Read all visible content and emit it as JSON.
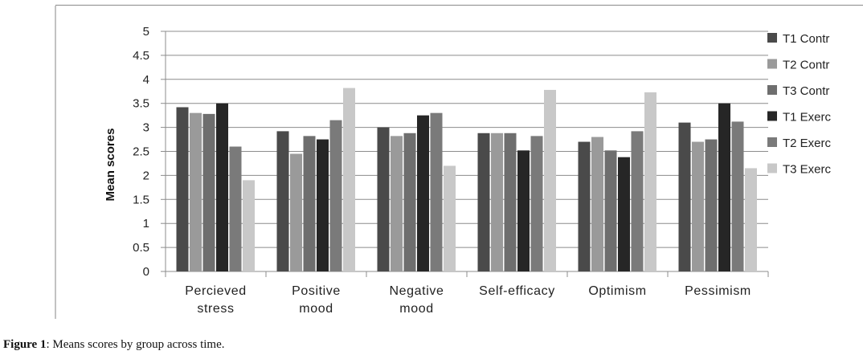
{
  "caption": {
    "label": "Figure 1",
    "text": ": Means scores by group across time."
  },
  "chart_data": {
    "type": "bar",
    "title": "",
    "xlabel": "",
    "ylabel": "Mean scores",
    "ylim": [
      0,
      5
    ],
    "yticks": [
      "0",
      "0.5",
      "1",
      "1.5",
      "2",
      "2.5",
      "3",
      "3.5",
      "4",
      "4.5",
      "5"
    ],
    "grid": true,
    "legend_position": "right",
    "categories": [
      [
        "Percieved",
        "stress"
      ],
      [
        "Positive",
        "mood"
      ],
      [
        "Negative",
        "mood"
      ],
      [
        "Self-efficacy"
      ],
      [
        "Optimism"
      ],
      [
        "Pessimism"
      ]
    ],
    "series": [
      {
        "name": "T1 Contr",
        "color": "#4a4a4a",
        "values": [
          3.42,
          2.92,
          3.0,
          2.88,
          2.7,
          3.1
        ]
      },
      {
        "name": "T2 Contr",
        "color": "#9a9a9a",
        "values": [
          3.3,
          2.45,
          2.82,
          2.88,
          2.8,
          2.7
        ]
      },
      {
        "name": "T3 Contr",
        "color": "#6e6e6e",
        "values": [
          3.28,
          2.82,
          2.88,
          2.88,
          2.52,
          2.75
        ]
      },
      {
        "name": "T1 Exerc",
        "color": "#262626",
        "values": [
          3.5,
          2.75,
          3.25,
          2.52,
          2.38,
          3.5
        ]
      },
      {
        "name": "T2 Exerc",
        "color": "#7a7a7a",
        "values": [
          2.6,
          3.15,
          3.3,
          2.82,
          2.92,
          3.12
        ]
      },
      {
        "name": "T3 Exerc",
        "color": "#c8c8c8",
        "values": [
          1.9,
          3.82,
          2.2,
          3.78,
          3.73,
          2.15
        ]
      }
    ]
  }
}
